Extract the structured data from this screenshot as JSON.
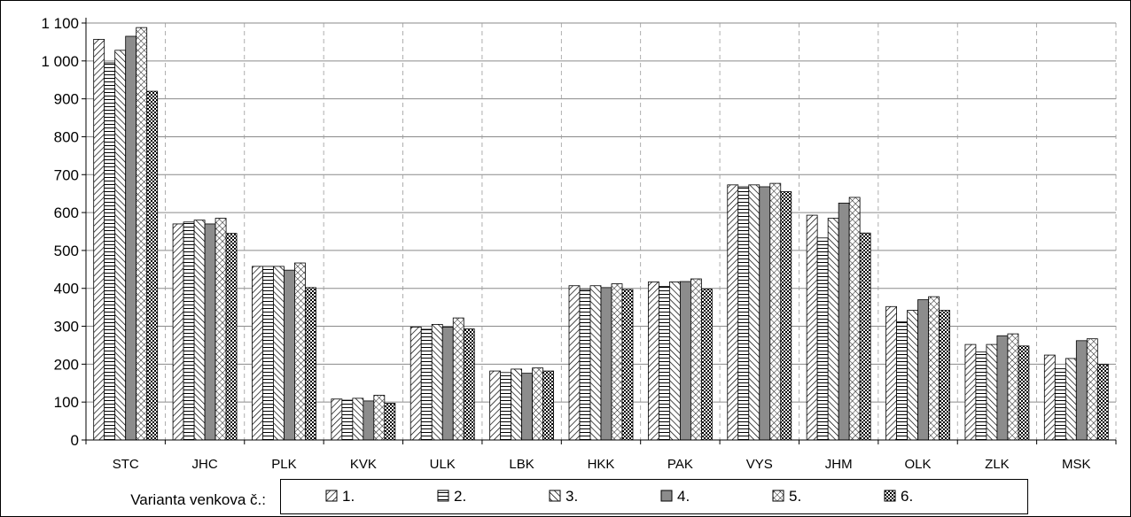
{
  "chart_data": {
    "type": "bar",
    "categories": [
      "STC",
      "JHC",
      "PLK",
      "KVK",
      "ULK",
      "LBK",
      "HKK",
      "PAK",
      "VYS",
      "JHM",
      "OLK",
      "ZLK",
      "MSK"
    ],
    "series": [
      {
        "name": "1.",
        "pattern": "diagonal-right",
        "values": [
          1057,
          570,
          458,
          108,
          298,
          182,
          407,
          417,
          673,
          593,
          352,
          252,
          224
        ]
      },
      {
        "name": "2.",
        "pattern": "horizontal-lines",
        "values": [
          995,
          575,
          458,
          105,
          292,
          178,
          397,
          405,
          668,
          533,
          312,
          232,
          188
        ]
      },
      {
        "name": "3.",
        "pattern": "diagonal-left",
        "values": [
          1028,
          580,
          458,
          110,
          305,
          187,
          407,
          417,
          673,
          585,
          342,
          252,
          215
        ]
      },
      {
        "name": "4.",
        "pattern": "solid-gray",
        "values": [
          1065,
          570,
          448,
          103,
          298,
          176,
          402,
          418,
          668,
          625,
          370,
          275,
          262
        ]
      },
      {
        "name": "5.",
        "pattern": "cross-hatch",
        "values": [
          1088,
          585,
          467,
          118,
          322,
          190,
          412,
          425,
          677,
          640,
          378,
          280,
          267
        ]
      },
      {
        "name": "6.",
        "pattern": "checkered",
        "values": [
          920,
          545,
          402,
          97,
          293,
          182,
          397,
          398,
          655,
          546,
          342,
          248,
          200
        ]
      }
    ],
    "ylim": [
      0,
      1100
    ],
    "yticks": [
      0,
      100,
      200,
      300,
      400,
      500,
      600,
      700,
      800,
      900,
      1000,
      1100
    ],
    "ytick_labels": [
      "0",
      "100",
      "200",
      "300",
      "400",
      "500",
      "600",
      "700",
      "800",
      "900",
      "1 000",
      "1 100"
    ],
    "grid": {
      "horizontal": true,
      "vertical": "dashed"
    },
    "legend": {
      "position": "bottom",
      "title": "Varianta venkova č.:"
    }
  }
}
